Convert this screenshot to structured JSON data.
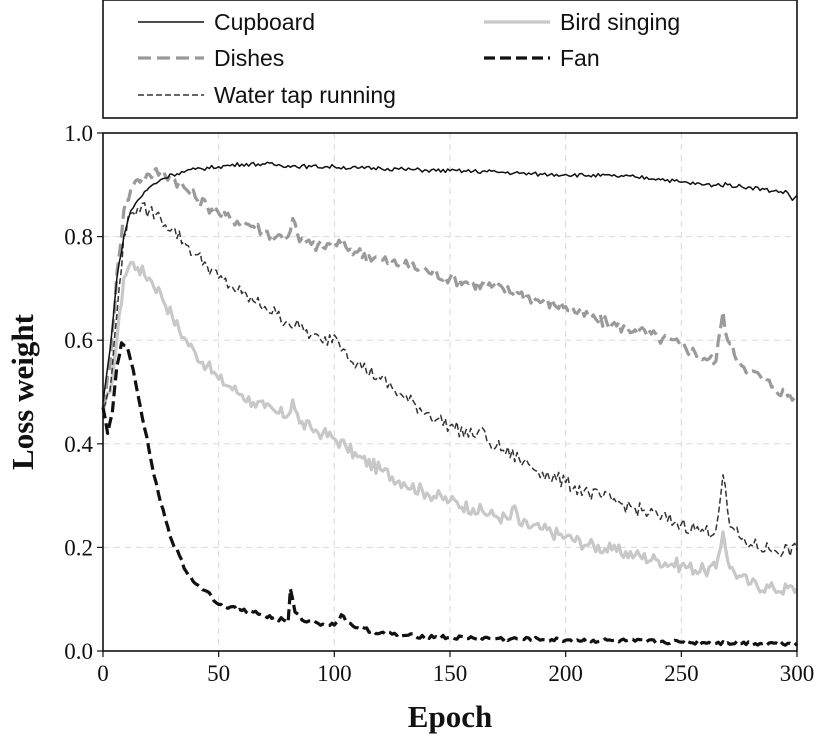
{
  "chart_data": {
    "type": "line",
    "title": "",
    "xlabel": "Epoch",
    "ylabel": "Loss weight",
    "xlim": [
      0,
      300
    ],
    "ylim": [
      0.0,
      1.0
    ],
    "xticks": [
      "0",
      "50",
      "100",
      "150",
      "200",
      "250",
      "300"
    ],
    "yticks": [
      "0.0",
      "0.2",
      "0.4",
      "0.6",
      "0.8",
      "1.0"
    ],
    "xtick_values": [
      0,
      50,
      100,
      150,
      200,
      250,
      300
    ],
    "ytick_values": [
      0.0,
      0.2,
      0.4,
      0.6,
      0.8,
      1.0
    ],
    "grid": true,
    "legend_position": "top-outside",
    "series": [
      {
        "name": "Cupboard",
        "color": "#111111",
        "dash": "solid",
        "width": "thin",
        "x": [
          0,
          3,
          6,
          9,
          12,
          15,
          20,
          25,
          30,
          40,
          50,
          60,
          70,
          80,
          90,
          100,
          110,
          120,
          130,
          140,
          150,
          160,
          170,
          180,
          190,
          200,
          210,
          220,
          230,
          240,
          250,
          260,
          270,
          280,
          290,
          296,
          298,
          300
        ],
        "values": [
          0.48,
          0.58,
          0.72,
          0.8,
          0.85,
          0.87,
          0.895,
          0.91,
          0.92,
          0.93,
          0.935,
          0.94,
          0.94,
          0.937,
          0.935,
          0.935,
          0.932,
          0.932,
          0.93,
          0.928,
          0.927,
          0.926,
          0.925,
          0.922,
          0.92,
          0.92,
          0.918,
          0.917,
          0.915,
          0.912,
          0.905,
          0.9,
          0.9,
          0.895,
          0.888,
          0.885,
          0.87,
          0.88
        ]
      },
      {
        "name": "Dishes",
        "color": "#9a9a9a",
        "dash": "long-dash",
        "width": "thick",
        "x": [
          0,
          3,
          6,
          9,
          12,
          15,
          20,
          25,
          30,
          35,
          40,
          45,
          50,
          55,
          60,
          65,
          70,
          75,
          80,
          82,
          85,
          90,
          95,
          100,
          105,
          110,
          120,
          130,
          140,
          150,
          160,
          170,
          180,
          190,
          200,
          210,
          220,
          230,
          240,
          250,
          260,
          265,
          268,
          270,
          275,
          280,
          290,
          300
        ],
        "values": [
          0.47,
          0.55,
          0.73,
          0.85,
          0.89,
          0.91,
          0.92,
          0.925,
          0.915,
          0.895,
          0.875,
          0.86,
          0.845,
          0.835,
          0.83,
          0.82,
          0.81,
          0.8,
          0.8,
          0.835,
          0.79,
          0.785,
          0.78,
          0.79,
          0.78,
          0.77,
          0.755,
          0.745,
          0.735,
          0.72,
          0.71,
          0.7,
          0.69,
          0.675,
          0.665,
          0.645,
          0.63,
          0.62,
          0.605,
          0.59,
          0.565,
          0.56,
          0.655,
          0.6,
          0.56,
          0.54,
          0.51,
          0.485
        ]
      },
      {
        "name": "Water tap running",
        "color": "#333333",
        "dash": "short-dash",
        "width": "thin",
        "x": [
          0,
          3,
          6,
          9,
          12,
          15,
          20,
          25,
          30,
          35,
          40,
          45,
          50,
          55,
          60,
          65,
          70,
          75,
          80,
          85,
          90,
          95,
          100,
          105,
          110,
          120,
          130,
          140,
          150,
          160,
          163,
          166,
          170,
          180,
          190,
          200,
          210,
          220,
          230,
          240,
          250,
          260,
          265,
          268,
          271,
          275,
          280,
          290,
          300
        ],
        "values": [
          0.47,
          0.5,
          0.65,
          0.8,
          0.845,
          0.855,
          0.85,
          0.835,
          0.815,
          0.79,
          0.765,
          0.745,
          0.72,
          0.705,
          0.69,
          0.675,
          0.665,
          0.65,
          0.635,
          0.625,
          0.61,
          0.595,
          0.61,
          0.58,
          0.555,
          0.525,
          0.49,
          0.46,
          0.435,
          0.415,
          0.43,
          0.405,
          0.395,
          0.37,
          0.345,
          0.325,
          0.305,
          0.29,
          0.275,
          0.26,
          0.245,
          0.23,
          0.235,
          0.34,
          0.24,
          0.22,
          0.205,
          0.195,
          0.195
        ]
      },
      {
        "name": "Bird singing",
        "color": "#c8c8c8",
        "dash": "solid",
        "width": "thick",
        "x": [
          0,
          3,
          6,
          9,
          12,
          15,
          20,
          25,
          30,
          35,
          40,
          45,
          50,
          55,
          60,
          65,
          70,
          75,
          80,
          82,
          85,
          90,
          95,
          100,
          105,
          110,
          120,
          130,
          140,
          150,
          160,
          170,
          176,
          178,
          180,
          190,
          200,
          210,
          220,
          230,
          240,
          250,
          260,
          265,
          268,
          271,
          275,
          280,
          290,
          300
        ],
        "values": [
          0.46,
          0.5,
          0.6,
          0.72,
          0.75,
          0.74,
          0.72,
          0.69,
          0.645,
          0.605,
          0.575,
          0.55,
          0.525,
          0.51,
          0.495,
          0.48,
          0.47,
          0.46,
          0.455,
          0.485,
          0.44,
          0.43,
          0.42,
          0.41,
          0.395,
          0.375,
          0.35,
          0.325,
          0.305,
          0.29,
          0.275,
          0.26,
          0.255,
          0.28,
          0.245,
          0.235,
          0.22,
          0.205,
          0.195,
          0.185,
          0.175,
          0.165,
          0.155,
          0.16,
          0.23,
          0.16,
          0.145,
          0.13,
          0.12,
          0.12
        ]
      },
      {
        "name": "Fan",
        "color": "#111111",
        "dash": "long-dash",
        "width": "thick",
        "x": [
          0,
          2,
          4,
          6,
          8,
          10,
          12,
          14,
          16,
          18,
          20,
          22,
          25,
          28,
          30,
          33,
          35,
          40,
          45,
          50,
          55,
          60,
          65,
          70,
          75,
          78,
          80,
          81,
          83,
          86,
          90,
          95,
          100,
          103,
          106,
          110,
          120,
          130,
          140,
          150,
          160,
          170,
          180,
          190,
          200,
          210,
          220,
          230,
          240,
          250,
          260,
          270,
          280,
          290,
          300
        ],
        "values": [
          0.47,
          0.42,
          0.46,
          0.55,
          0.595,
          0.59,
          0.56,
          0.52,
          0.475,
          0.43,
          0.385,
          0.34,
          0.285,
          0.24,
          0.21,
          0.185,
          0.16,
          0.13,
          0.115,
          0.09,
          0.085,
          0.078,
          0.075,
          0.068,
          0.062,
          0.06,
          0.055,
          0.12,
          0.075,
          0.06,
          0.058,
          0.052,
          0.05,
          0.07,
          0.055,
          0.045,
          0.035,
          0.03,
          0.028,
          0.026,
          0.025,
          0.024,
          0.023,
          0.022,
          0.021,
          0.02,
          0.02,
          0.019,
          0.018,
          0.017,
          0.016,
          0.016,
          0.015,
          0.015,
          0.015
        ]
      }
    ]
  }
}
